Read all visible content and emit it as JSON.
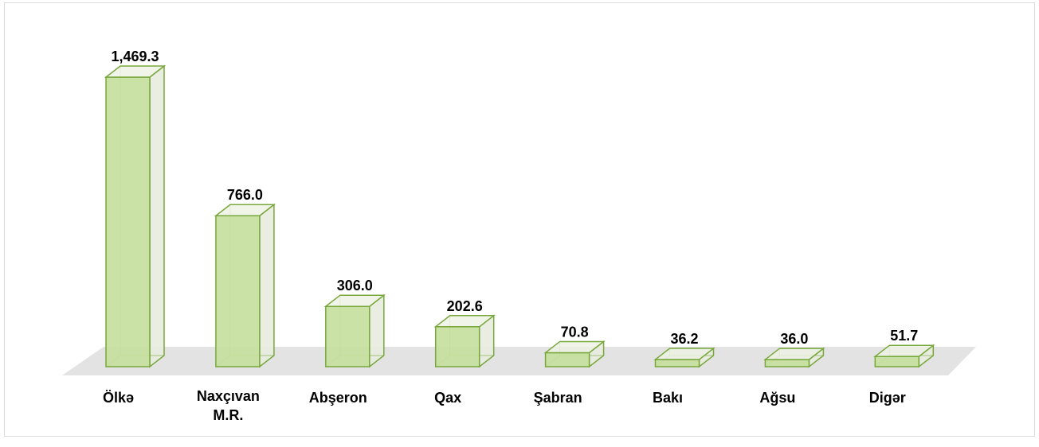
{
  "chart_data": {
    "type": "bar3d",
    "categories": [
      "Ölkə",
      "Naxçıvan M.R.",
      "Abşeron",
      "Qax",
      "Şabran",
      "Bakı",
      "Ağsu",
      "Digər"
    ],
    "values": [
      1469.3,
      766.0,
      306.0,
      202.6,
      70.8,
      36.2,
      36.0,
      51.7
    ],
    "value_labels": [
      "1,469.3",
      "766.0",
      "306.0",
      "202.6",
      "70.8",
      "36.2",
      "36.0",
      "51.7"
    ],
    "color": "#c5df9c"
  }
}
